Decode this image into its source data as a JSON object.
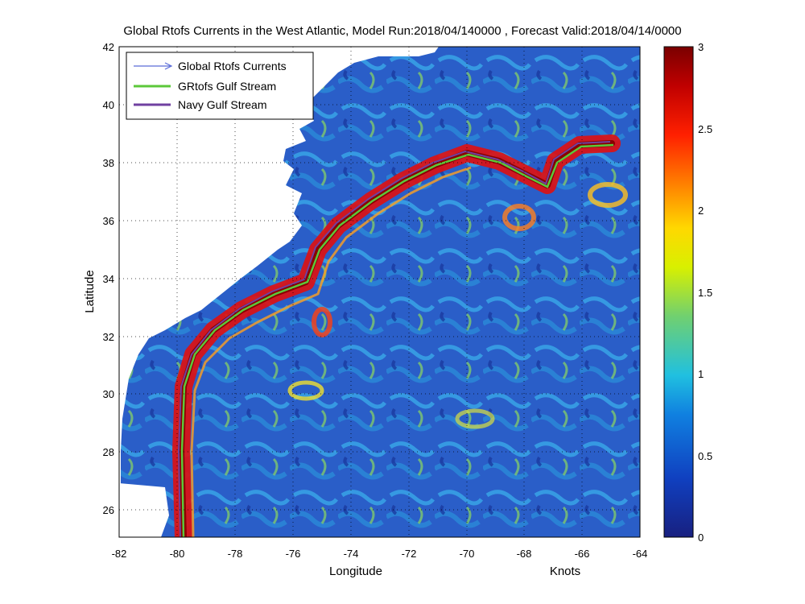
{
  "title": "Global Rtofs Currents in the West Atlantic, Model Run:2018/04/140000 , Forecast Valid:2018/04/14/0000",
  "map": {
    "xlabel": "Longitude",
    "ylabel": "Latitude",
    "x_ticks": [
      "-82",
      "-80",
      "-78",
      "-76",
      "-74",
      "-72",
      "-70",
      "-68",
      "-66",
      "-64"
    ],
    "y_ticks": [
      "42",
      "40",
      "38",
      "36",
      "34",
      "32",
      "30",
      "28",
      "26"
    ],
    "lon_range": [
      -82,
      -64
    ],
    "lat_range": [
      25,
      42
    ],
    "grid": "dotted"
  },
  "legend": {
    "items": [
      {
        "label": "Global Rtofs Currents",
        "color": "#5a6cd8",
        "style": "arrow"
      },
      {
        "label": "GRtofs Gulf Stream",
        "color": "#5cc83a",
        "style": "line"
      },
      {
        "label": "Navy Gulf Stream",
        "color": "#7040a0",
        "style": "line"
      }
    ]
  },
  "colorbar": {
    "label": "Knots",
    "ticks": [
      "3",
      "2.5",
      "2",
      "1.5",
      "1",
      "0.5",
      "0"
    ],
    "range": [
      0,
      3
    ],
    "colors": [
      "#7a0000",
      "#c00000",
      "#ff2000",
      "#ff8000",
      "#ffd800",
      "#d8f000",
      "#70d070",
      "#20c0e0",
      "#1080e0",
      "#1040c0",
      "#182080"
    ]
  }
}
